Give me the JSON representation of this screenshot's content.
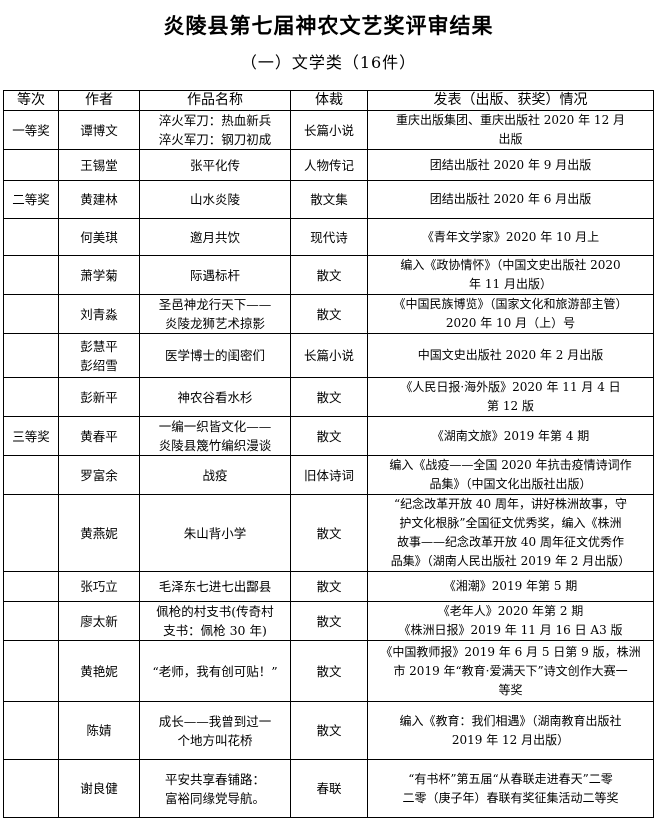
{
  "title": "炎陵县第七届神农文艺奖评审结果",
  "subtitle": "（一）文学类（16件）",
  "headers": [
    "等次",
    "作者",
    "作品名称",
    "体裁",
    "发表（出版、获奖）情况"
  ],
  "rows": [
    {
      "rank": "一等奖",
      "author": "谭博文",
      "work": "淬火军刀：热血新兵\n淬火军刀：钢刀初成",
      "genre": "长篇小说",
      "detail": "重庆出版集团、重庆出版社 2020 年 12 月\n出版"
    },
    {
      "rank": "",
      "author": "王锡堂",
      "work": "张平化传",
      "genre": "人物传记",
      "detail": "团结出版社 2020 年 9 月出版"
    },
    {
      "rank": "二等奖",
      "author": "黄建林",
      "work": "山水炎陵",
      "genre": "散文集",
      "detail": "团结出版社 2020 年 6 月出版"
    },
    {
      "rank": "",
      "author": "何美琪",
      "work": "邀月共饮",
      "genre": "现代诗",
      "detail": "《青年文学家》2020 年 10 月上"
    },
    {
      "rank": "",
      "author": "萧学菊",
      "work": "际遇标杆",
      "genre": "散文",
      "detail": "编入《政协情怀》（中国文史出版社 2020\n年 11 月出版）"
    },
    {
      "rank": "",
      "author": "刘青淼",
      "work": "圣邑神龙行天下——\n炎陵龙狮艺术掠影",
      "genre": "散文",
      "detail": "《中国民族博览》（国家文化和旅游部主管）\n2020 年 10 月（上）号"
    },
    {
      "rank": "",
      "author": "彭慧平\n彭绍雪",
      "work": "医学博士的闺密们",
      "genre": "长篇小说",
      "detail": "中国文史出版社 2020 年 2 月出版"
    },
    {
      "rank": "",
      "author": "彭新平",
      "work": "神农谷看水杉",
      "genre": "散文",
      "detail": "《人民日报·海外版》2020 年 11 月 4 日\n第 12 版"
    },
    {
      "rank": "三等奖",
      "author": "黄春平",
      "work": "一编一织皆文化——\n炎陵县篾竹编织漫谈",
      "genre": "散文",
      "detail": "《湖南文旅》2019 年第 4 期"
    },
    {
      "rank": "",
      "author": "罗富余",
      "work": "战疫",
      "genre": "旧体诗词",
      "detail": "编入《战疫——全国 2020 年抗击疫情诗词作\n品集》（中国文化出版社出版）"
    },
    {
      "rank": "",
      "author": "黄燕妮",
      "work": "朱山背小学",
      "genre": "散文",
      "detail": "“纪念改革开放 40 周年，讲好株洲故事，守\n护文化根脉”全国征文优秀奖，编入《株洲\n故事——纪念改革开放 40 周年征文优秀作\n品集》（湖南人民出版社 2019 年 2 月出版）"
    },
    {
      "rank": "",
      "author": "张巧立",
      "work": "毛泽东七进七出酃县",
      "genre": "散文",
      "detail": "《湘潮》2019 年第 5 期"
    },
    {
      "rank": "",
      "author": "廖太新",
      "work": "佩枪的村支书(传奇村\n支书：佩枪 30 年)",
      "genre": "散文",
      "detail": "《老年人》2020 年第 2 期\n《株洲日报》2019 年 11 月 16 日 A3 版"
    },
    {
      "rank": "",
      "author": "黄艳妮",
      "work": "“老师，我有创可贴！”",
      "genre": "散文",
      "detail": "《中国教师报》2019 年 6 月 5 日第 9 版，株洲\n市 2019 年“教育·爱满天下”诗文创作大赛一\n等奖"
    },
    {
      "rank": "",
      "author": "陈婧",
      "work": "成长——我曾到过一\n个地方叫花桥",
      "genre": "散文",
      "detail": "编入《教育：我们相遇》（湖南教育出版社\n2019 年 12 月出版）"
    },
    {
      "rank": "",
      "author": "谢良健",
      "work": "平安共享春铺路：\n富裕同缘党导航。",
      "genre": "春联",
      "detail": "“有书杯”第五届“从春联走进春天”二零\n二零（庚子年）春联有奖征集活动二等奖"
    }
  ]
}
